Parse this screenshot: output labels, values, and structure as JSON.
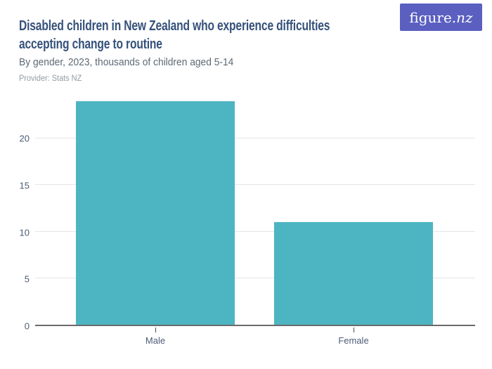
{
  "header": {
    "title": "Disabled children in New Zealand who experience difficulties accepting change to routine",
    "subtitle": "By gender, 2023, thousands of children aged 5-14",
    "provider": "Provider: Stats NZ"
  },
  "logo": {
    "text_main": "figure.",
    "text_accent": "nz"
  },
  "chart_data": {
    "type": "bar",
    "categories": [
      "Male",
      "Female"
    ],
    "values": [
      24,
      11
    ],
    "title": "Disabled children in New Zealand who experience difficulties accepting change to routine",
    "subtitle": "By gender, 2023, thousands of children aged 5-14",
    "xlabel": "",
    "ylabel": "",
    "ylim": [
      0,
      24
    ],
    "yticks": [
      0,
      5,
      10,
      15,
      20
    ],
    "grid": true,
    "legend": false,
    "bar_color": "#4db4c2",
    "source": "Provider: Stats NZ"
  },
  "colors": {
    "bar": "#4db4c2",
    "title": "#35517a",
    "subtitle": "#5d6974",
    "provider": "#939ba3",
    "axis_label": "#4c5c74",
    "gridline": "#e5e5e5",
    "axis_line": "#6b6b6b",
    "tick_mark": "#4a4a4a",
    "logo_bg": "#5b5fc0",
    "background": "#ffffff"
  }
}
